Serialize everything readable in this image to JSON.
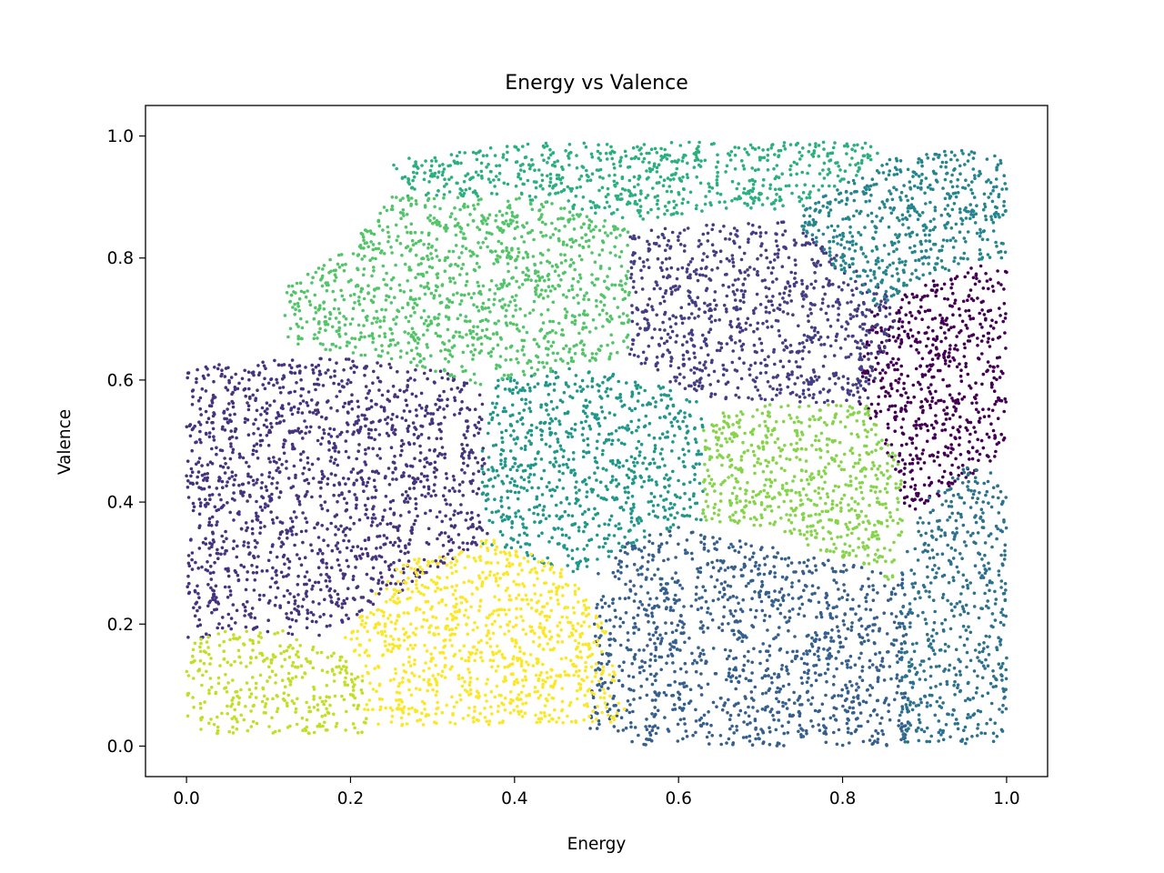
{
  "chart_data": {
    "type": "scatter",
    "title": "Energy vs Valence",
    "xlabel": "Energy",
    "ylabel": "Valence",
    "xlim": [
      -0.05,
      1.05
    ],
    "ylim": [
      -0.05,
      1.05
    ],
    "xticks": [
      "0.0",
      "0.2",
      "0.4",
      "0.6",
      "0.8",
      "1.0"
    ],
    "yticks": [
      "0.0",
      "0.2",
      "0.4",
      "0.6",
      "0.8",
      "1.0"
    ],
    "grid": false,
    "legend": false,
    "colormap": "viridis",
    "clusters": [
      {
        "color": "#440154",
        "center": [
          0.95,
          0.64
        ],
        "region": [
          [
            0.88,
            0.38
          ],
          [
            0.98,
            0.46
          ],
          [
            1.0,
            0.5
          ],
          [
            1.0,
            0.78
          ],
          [
            0.97,
            0.79
          ],
          [
            0.9,
            0.76
          ],
          [
            0.83,
            0.71
          ],
          [
            0.82,
            0.56
          ],
          [
            0.85,
            0.5
          ]
        ]
      },
      {
        "color": "#46337e",
        "center": [
          0.18,
          0.4
        ],
        "region": [
          [
            0.0,
            0.17
          ],
          [
            0.05,
            0.19
          ],
          [
            0.17,
            0.18
          ],
          [
            0.37,
            0.34
          ],
          [
            0.36,
            0.58
          ],
          [
            0.33,
            0.61
          ],
          [
            0.25,
            0.63
          ],
          [
            0.15,
            0.64
          ],
          [
            0.0,
            0.62
          ]
        ]
      },
      {
        "color": "#433d84",
        "center": [
          0.72,
          0.69
        ],
        "region": [
          [
            0.54,
            0.85
          ],
          [
            0.74,
            0.86
          ],
          [
            0.82,
            0.78
          ],
          [
            0.87,
            0.72
          ],
          [
            0.83,
            0.56
          ],
          [
            0.64,
            0.57
          ],
          [
            0.58,
            0.6
          ],
          [
            0.54,
            0.64
          ]
        ]
      },
      {
        "color": "#355f8d",
        "center": [
          0.7,
          0.18
        ],
        "region": [
          [
            0.49,
            0.03
          ],
          [
            0.55,
            0.0
          ],
          [
            0.88,
            0.0
          ],
          [
            0.88,
            0.28
          ],
          [
            0.8,
            0.3
          ],
          [
            0.6,
            0.36
          ],
          [
            0.54,
            0.34
          ],
          [
            0.5,
            0.28
          ]
        ]
      },
      {
        "color": "#2c728e",
        "center": [
          0.94,
          0.22
        ],
        "region": [
          [
            0.87,
            0.0
          ],
          [
            1.0,
            0.0
          ],
          [
            1.0,
            0.44
          ],
          [
            0.95,
            0.46
          ],
          [
            0.9,
            0.4
          ],
          [
            0.87,
            0.3
          ]
        ]
      },
      {
        "color": "#25858e",
        "center": [
          0.87,
          0.87
        ],
        "region": [
          [
            0.75,
            0.88
          ],
          [
            0.86,
            0.97
          ],
          [
            0.98,
            0.98
          ],
          [
            1.0,
            0.95
          ],
          [
            1.0,
            0.8
          ],
          [
            0.95,
            0.79
          ],
          [
            0.84,
            0.72
          ],
          [
            0.8,
            0.77
          ],
          [
            0.75,
            0.85
          ]
        ]
      },
      {
        "color": "#1f988b",
        "center": [
          0.46,
          0.47
        ],
        "region": [
          [
            0.36,
            0.33
          ],
          [
            0.48,
            0.28
          ],
          [
            0.54,
            0.33
          ],
          [
            0.63,
            0.37
          ],
          [
            0.63,
            0.56
          ],
          [
            0.57,
            0.6
          ],
          [
            0.47,
            0.62
          ],
          [
            0.38,
            0.6
          ],
          [
            0.36,
            0.5
          ]
        ]
      },
      {
        "color": "#2ab07f",
        "center": [
          0.6,
          0.95
        ],
        "region": [
          [
            0.25,
            0.96
          ],
          [
            0.42,
            0.99
          ],
          [
            0.84,
            0.99
          ],
          [
            0.85,
            0.96
          ],
          [
            0.75,
            0.88
          ],
          [
            0.65,
            0.88
          ],
          [
            0.54,
            0.86
          ],
          [
            0.4,
            0.9
          ],
          [
            0.27,
            0.9
          ]
        ]
      },
      {
        "color": "#52c569",
        "center": [
          0.39,
          0.73
        ],
        "region": [
          [
            0.12,
            0.66
          ],
          [
            0.26,
            0.63
          ],
          [
            0.36,
            0.59
          ],
          [
            0.54,
            0.64
          ],
          [
            0.54,
            0.85
          ],
          [
            0.42,
            0.9
          ],
          [
            0.25,
            0.9
          ],
          [
            0.2,
            0.82
          ],
          [
            0.12,
            0.75
          ]
        ]
      },
      {
        "color": "#86d549",
        "center": [
          0.75,
          0.44
        ],
        "region": [
          [
            0.63,
            0.37
          ],
          [
            0.72,
            0.35
          ],
          [
            0.86,
            0.27
          ],
          [
            0.88,
            0.4
          ],
          [
            0.86,
            0.5
          ],
          [
            0.83,
            0.56
          ],
          [
            0.69,
            0.56
          ],
          [
            0.63,
            0.54
          ]
        ]
      },
      {
        "color": "#c2df23",
        "center": [
          0.1,
          0.09
        ],
        "region": [
          [
            0.0,
            0.02
          ],
          [
            0.22,
            0.02
          ],
          [
            0.22,
            0.1
          ],
          [
            0.19,
            0.15
          ],
          [
            0.12,
            0.19
          ],
          [
            0.04,
            0.19
          ],
          [
            0.0,
            0.17
          ]
        ]
      },
      {
        "color": "#fde725",
        "center": [
          0.36,
          0.17
        ],
        "region": [
          [
            0.21,
            0.03
          ],
          [
            0.54,
            0.04
          ],
          [
            0.51,
            0.2
          ],
          [
            0.46,
            0.3
          ],
          [
            0.37,
            0.34
          ],
          [
            0.26,
            0.3
          ],
          [
            0.19,
            0.18
          ],
          [
            0.22,
            0.1
          ]
        ]
      }
    ]
  }
}
